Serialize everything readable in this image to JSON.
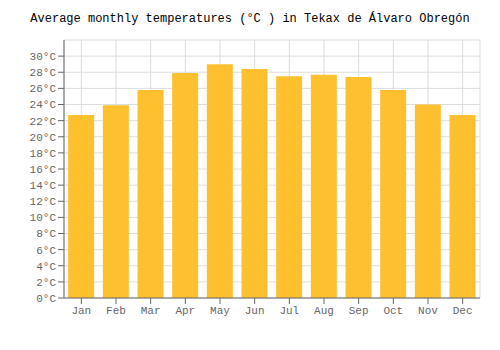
{
  "chart_data": {
    "type": "bar",
    "title": "Average monthly temperatures (°C ) in Tekax de Álvaro Obregón",
    "categories": [
      "Jan",
      "Feb",
      "Mar",
      "Apr",
      "May",
      "Jun",
      "Jul",
      "Aug",
      "Sep",
      "Oct",
      "Nov",
      "Dec"
    ],
    "values": [
      22.7,
      23.9,
      25.8,
      27.9,
      29.0,
      28.4,
      27.5,
      27.7,
      27.4,
      25.8,
      24.0,
      22.7
    ],
    "color": "#FFC030",
    "ylim": [
      0,
      32
    ],
    "yticks": [
      {
        "value": 0,
        "label": "0°C"
      },
      {
        "value": 2,
        "label": "2°C"
      },
      {
        "value": 4,
        "label": "4°C"
      },
      {
        "value": 6,
        "label": "6°C"
      },
      {
        "value": 8,
        "label": "8°C"
      },
      {
        "value": 10,
        "label": "10°C"
      },
      {
        "value": 12,
        "label": "12°C"
      },
      {
        "value": 14,
        "label": "14°C"
      },
      {
        "value": 16,
        "label": "16°C"
      },
      {
        "value": 18,
        "label": "18°C"
      },
      {
        "value": 20,
        "label": "20°C"
      },
      {
        "value": 22,
        "label": "22°C"
      },
      {
        "value": 24,
        "label": "24°C"
      },
      {
        "value": 26,
        "label": "26°C"
      },
      {
        "value": 28,
        "label": "28°C"
      },
      {
        "value": 30,
        "label": "30°C"
      }
    ],
    "grid": true
  }
}
